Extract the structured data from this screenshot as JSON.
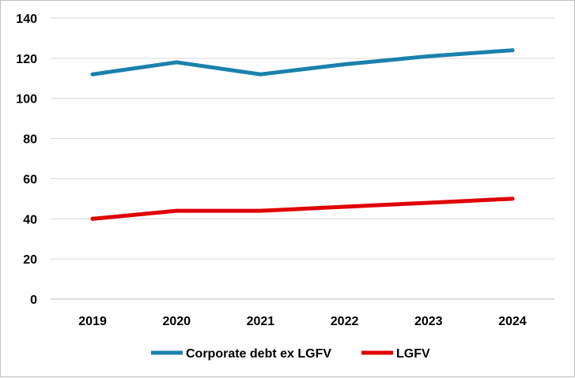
{
  "chart_data": {
    "type": "line",
    "x": [
      "2019",
      "2020",
      "2021",
      "2022",
      "2023",
      "2024"
    ],
    "ylim": [
      0,
      140
    ],
    "yticks": [
      0,
      20,
      40,
      60,
      80,
      100,
      120,
      140
    ],
    "grid": true,
    "legend_position": "bottom",
    "series": [
      {
        "name": "Corporate debt ex LGFV",
        "color": "#1a81ad",
        "values": [
          112,
          118,
          112,
          117,
          121,
          124
        ]
      },
      {
        "name": "LGFV",
        "color": "#e00000",
        "values": [
          40,
          44,
          44,
          46,
          48,
          50
        ]
      }
    ]
  }
}
